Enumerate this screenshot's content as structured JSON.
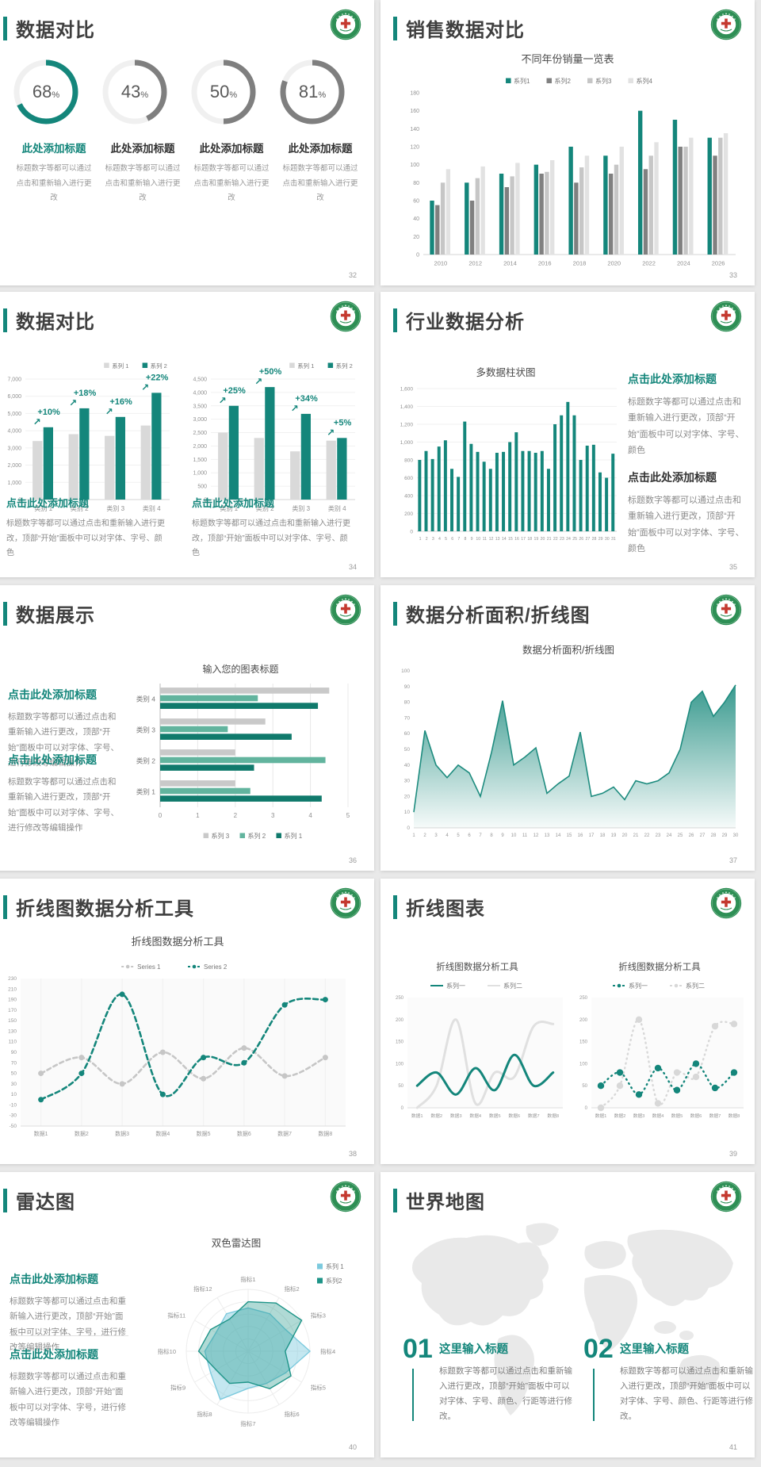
{
  "accent": "#14867B",
  "slides": [
    {
      "title": "数据对比",
      "page": "32",
      "items": [
        {
          "heading": "此处添加标题",
          "desc": "标题数字等都可以通过点击和重新输入进行更改"
        },
        {
          "heading": "此处添加标题",
          "desc": "标题数字等都可以通过点击和重新输入进行更改"
        },
        {
          "heading": "此处添加标题",
          "desc": "标题数字等都可以通过点击和重新输入进行更改"
        },
        {
          "heading": "此处添加标题",
          "desc": "标题数字等都可以通过点击和重新输入进行更改"
        }
      ]
    },
    {
      "title": "销售数据对比",
      "page": "33"
    },
    {
      "title": "数据对比",
      "page": "34",
      "blocks": [
        {
          "heading": "点击此处添加标题",
          "body": "标题数字等都可以通过点击和重新输入进行更改，顶部“开始”面板中可以对字体、字号、颜色"
        },
        {
          "heading": "点击此处添加标题",
          "body": "标题数字等都可以通过点击和重新输入进行更改，顶部“开始”面板中可以对字体、字号、颜色"
        }
      ]
    },
    {
      "title": "行业数据分析",
      "page": "35",
      "blocks": [
        {
          "heading": "点击此处添加标题",
          "body": "标题数字等都可以通过点击和重新输入进行更改，顶部“开始”面板中可以对字体、字号、颜色"
        },
        {
          "heading": "点击此处添加标题",
          "body": "标题数字等都可以通过点击和重新输入进行更改，顶部“开始”面板中可以对字体、字号、颜色"
        }
      ]
    },
    {
      "title": "数据展示",
      "page": "36",
      "blocks": [
        {
          "heading": "点击此处添加标题",
          "body": "标题数字等都可以通过点击和重新输入进行更改，顶部“开始”面板中可以对字体、字号、进行修改等编辑操作"
        },
        {
          "heading": "点击此处添加标题",
          "body": "标题数字等都可以通过点击和重新输入进行更改，顶部“开始”面板中可以对字体、字号、进行修改等编辑操作"
        }
      ]
    },
    {
      "title": "数据分析面积/折线图",
      "page": "37"
    },
    {
      "title": "折线图数据分析工具",
      "page": "38"
    },
    {
      "title": "折线图表",
      "page": "39"
    },
    {
      "title": "雷达图",
      "page": "40",
      "blocks": [
        {
          "heading": "点击此处添加标题",
          "body": "标题数字等都可以通过点击和重新输入进行更改，顶部“开始”面板中可以对字体、字号，进行修改等编辑操作"
        },
        {
          "heading": "点击此处添加标题",
          "body": "标题数字等都可以通过点击和重新输入进行更改，顶部“开始”面板中可以对字体、字号，进行修改等编辑操作"
        }
      ]
    },
    {
      "title": "世界地图",
      "page": "41",
      "blocks": [
        {
          "num": "01",
          "heading": "这里输入标题",
          "body": "标题数字等都可以通过点击和重新输入进行更改，顶部“开始”面板中可以对字体、字号、颜色、行距等进行修改。"
        },
        {
          "num": "02",
          "heading": "这里输入标题",
          "body": "标题数字等都可以通过点击和重新输入进行更改，顶部“开始”面板中可以对字体、字号、颜色、行距等进行修改。"
        }
      ]
    }
  ],
  "chart_data": [
    {
      "type": "donut",
      "values": [
        68,
        43,
        50,
        81
      ],
      "unit": "%",
      "colors": [
        "#14867B",
        "#7f7f7f",
        "#7f7f7f",
        "#7f7f7f"
      ],
      "track_color": "#f0f0f0"
    },
    {
      "type": "bar",
      "title": "不同年份销量一览表",
      "categories": [
        "2010",
        "2012",
        "2014",
        "2016",
        "2018",
        "2020",
        "2022",
        "2024",
        "2026"
      ],
      "series": [
        {
          "name": "系列1",
          "color": "#14867B",
          "values": [
            60,
            80,
            90,
            100,
            120,
            110,
            160,
            150,
            130
          ]
        },
        {
          "name": "系列2",
          "color": "#808080",
          "values": [
            55,
            60,
            75,
            90,
            80,
            90,
            95,
            120,
            110
          ]
        },
        {
          "name": "系列3",
          "color": "#c6c6c6",
          "values": [
            80,
            85,
            87,
            92,
            97,
            100,
            110,
            120,
            130
          ]
        },
        {
          "name": "系列4",
          "color": "#e2e2e2",
          "values": [
            95,
            98,
            102,
            105,
            110,
            120,
            125,
            130,
            135
          ]
        }
      ],
      "ylim": [
        0,
        180
      ],
      "ystep": 20,
      "legend_position": "top"
    },
    {
      "type": "bar",
      "title": "",
      "categories": [
        "类别 1",
        "类别 2",
        "类别 3",
        "类别 4"
      ],
      "series": [
        {
          "name": "系列 1",
          "color": "#d9d9d9",
          "values": [
            3400,
            3800,
            3700,
            4300
          ]
        },
        {
          "name": "系列 2",
          "color": "#14867B",
          "values": [
            4200,
            5300,
            4800,
            6200
          ]
        }
      ],
      "ylim": [
        0,
        7000
      ],
      "ystep": 1000,
      "annotations": [
        "+10%",
        "+18%",
        "+16%",
        "+22%"
      ],
      "legend_position": "top-right"
    },
    {
      "type": "bar",
      "title": "",
      "categories": [
        "类别 1",
        "类别 2",
        "类别 3",
        "类别 4"
      ],
      "series": [
        {
          "name": "系列 1",
          "color": "#d9d9d9",
          "values": [
            2500,
            2300,
            1800,
            2200
          ]
        },
        {
          "name": "系列 2",
          "color": "#14867B",
          "values": [
            3500,
            4200,
            3200,
            2300
          ]
        }
      ],
      "ylim": [
        0,
        4500
      ],
      "ystep": 500,
      "annotations": [
        "+25%",
        "+50%",
        "+34%",
        "+5%"
      ],
      "legend_position": "top-right"
    },
    {
      "type": "bar",
      "title": "多数据柱状图",
      "categories": [
        "1",
        "2",
        "3",
        "4",
        "5",
        "6",
        "7",
        "8",
        "9",
        "10",
        "11",
        "12",
        "13",
        "14",
        "15",
        "16",
        "17",
        "18",
        "19",
        "20",
        "21",
        "22",
        "23",
        "24",
        "25",
        "26",
        "27",
        "28",
        "29",
        "30",
        "31"
      ],
      "series": [
        {
          "name": "数据",
          "color": "#14867B",
          "values": [
            800,
            900,
            810,
            950,
            1020,
            700,
            610,
            1230,
            980,
            890,
            780,
            700,
            880,
            890,
            1000,
            1110,
            900,
            900,
            880,
            900,
            700,
            1200,
            1300,
            1450,
            1300,
            800,
            960,
            970,
            660,
            600,
            870
          ]
        }
      ],
      "ylim": [
        0,
        1600
      ],
      "ystep": 200
    },
    {
      "type": "hbar",
      "title": "输入您的图表标题",
      "categories": [
        "类别 4",
        "类别 3",
        "类别 2",
        "类别 1"
      ],
      "series": [
        {
          "name": "系列 3",
          "color": "#c9c9c9",
          "values": [
            4.5,
            2.8,
            2.0,
            2.0
          ]
        },
        {
          "name": "系列 2",
          "color": "#62b49e",
          "values": [
            2.6,
            1.8,
            4.4,
            2.4
          ]
        },
        {
          "name": "系列 1",
          "color": "#107a6c",
          "values": [
            4.2,
            3.5,
            2.5,
            4.3
          ]
        }
      ],
      "xlim": [
        0,
        5
      ],
      "xstep": 1,
      "legend_position": "bottom"
    },
    {
      "type": "area",
      "title": "数据分析面积/折线图",
      "x": [
        "1",
        "2",
        "3",
        "4",
        "5",
        "6",
        "7",
        "8",
        "9",
        "10",
        "11",
        "12",
        "13",
        "14",
        "15",
        "16",
        "17",
        "18",
        "19",
        "20",
        "21",
        "22",
        "23",
        "24",
        "25",
        "26",
        "27",
        "28",
        "29",
        "30"
      ],
      "values": [
        10,
        62,
        40,
        32,
        40,
        35,
        20,
        48,
        81,
        40,
        45,
        51,
        22,
        28,
        33,
        61,
        20,
        22,
        26,
        18,
        30,
        28,
        30,
        35,
        50,
        80,
        87,
        71,
        80,
        91
      ],
      "ylim": [
        0,
        100
      ],
      "ystep": 10,
      "color": "#1e8c7f"
    },
    {
      "type": "line",
      "title": "折线图数据分析工具",
      "categories": [
        "数据1",
        "数据2",
        "数据3",
        "数据4",
        "数据5",
        "数据6",
        "数据7",
        "数据8"
      ],
      "series": [
        {
          "name": "Series 1",
          "color": "#c6c6c6",
          "dash": "5 4",
          "marker": true,
          "values": [
            50,
            80,
            30,
            90,
            40,
            98,
            45,
            80
          ]
        },
        {
          "name": "Series 2",
          "color": "#14867B",
          "dash": "6 4",
          "marker": true,
          "values": [
            0,
            50,
            200,
            10,
            80,
            70,
            180,
            190
          ]
        }
      ],
      "ylim": [
        -50,
        230
      ],
      "ystep": 20,
      "legend_position": "top"
    },
    {
      "type": "line",
      "title": "折线图数据分析工具",
      "categories": [
        "数据1",
        "数据2",
        "数据3",
        "数据4",
        "数据5",
        "数据6",
        "数据7",
        "数据8"
      ],
      "series": [
        {
          "name": "系列一",
          "color": "#14867B",
          "marker": false,
          "values": [
            50,
            80,
            30,
            90,
            40,
            120,
            50,
            80
          ]
        },
        {
          "name": "系列二",
          "color": "#e0e0e0",
          "marker": false,
          "values": [
            0,
            50,
            200,
            10,
            80,
            70,
            185,
            190
          ]
        }
      ],
      "ylim": [
        0,
        250
      ],
      "ystep": 50,
      "legend_position": "top"
    },
    {
      "type": "line",
      "title": "折线图数据分析工具",
      "categories": [
        "数据1",
        "数据2",
        "数据3",
        "数据4",
        "数据5",
        "数据6",
        "数据7",
        "数据8"
      ],
      "series": [
        {
          "name": "系列一",
          "color": "#14867B",
          "dash": "1 5",
          "marker": true,
          "values": [
            50,
            80,
            30,
            90,
            40,
            100,
            45,
            80
          ]
        },
        {
          "name": "系列二",
          "color": "#d8d8d8",
          "dash": "1 5",
          "marker": true,
          "values": [
            0,
            50,
            200,
            10,
            80,
            70,
            185,
            190
          ]
        }
      ],
      "ylim": [
        0,
        250
      ],
      "ystep": 50,
      "legend_position": "top"
    },
    {
      "type": "radar",
      "title": "双色雷达图",
      "axes": [
        "指标1",
        "指标2",
        "指标3",
        "指标4",
        "指标5",
        "指标6",
        "指标7",
        "指标8",
        "指标9",
        "指标10",
        "指标11",
        "指标12"
      ],
      "rmax": 10,
      "series": [
        {
          "name": "系列 1",
          "color": "#7ccade",
          "fill_opacity": 0.45,
          "values": [
            7,
            7,
            7,
            10,
            7,
            6,
            6,
            9,
            7,
            7,
            6,
            7
          ]
        },
        {
          "name": "系列2",
          "color": "#1e9488",
          "fill_opacity": 0.35,
          "values": [
            8,
            9,
            10,
            6,
            8,
            7,
            5,
            6,
            6,
            8,
            7,
            6
          ]
        }
      ],
      "legend_position": "right"
    }
  ]
}
